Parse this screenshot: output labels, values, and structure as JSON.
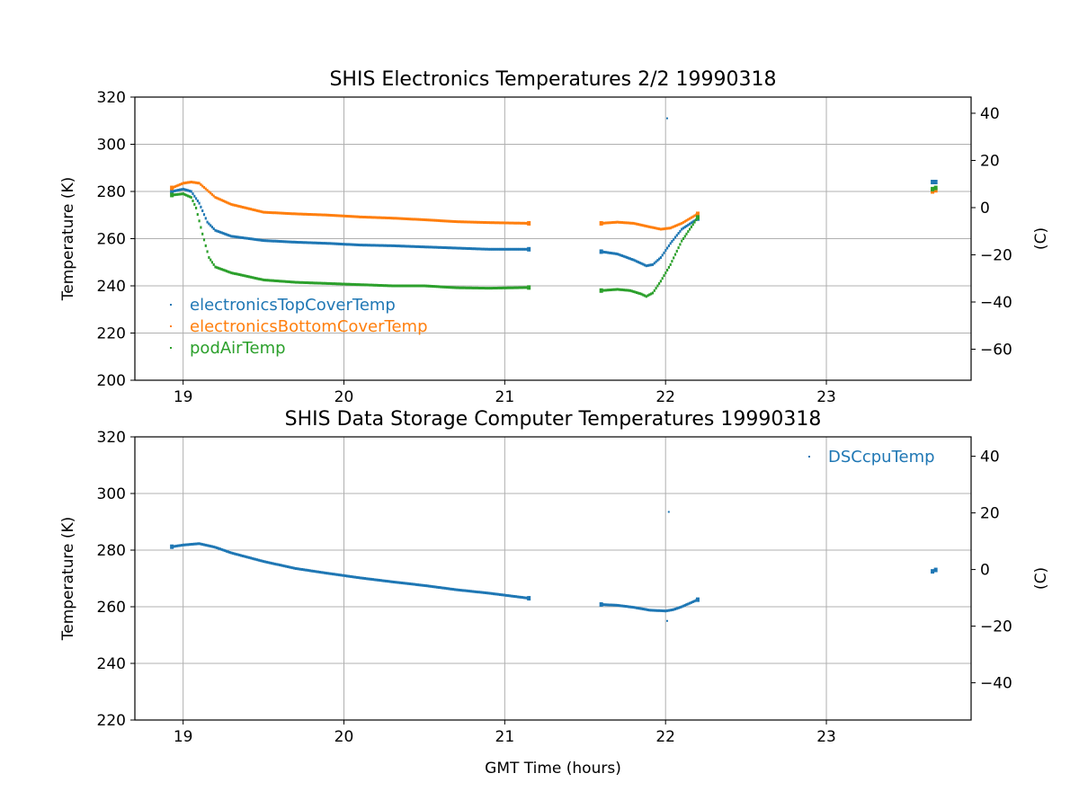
{
  "chart_data": [
    {
      "type": "scatter",
      "title": "SHIS Electronics Temperatures 2/2 19990318",
      "xlabel": "",
      "ylabel": "Temperature (K)",
      "ylabel_right": "(C)",
      "xlim": [
        18.7,
        23.9
      ],
      "ylim": [
        200,
        320
      ],
      "ylim_right": [
        -73.15,
        46.85
      ],
      "x_ticks": [
        "19",
        "20",
        "21",
        "22",
        "23"
      ],
      "y_ticks": [
        "200",
        "220",
        "240",
        "260",
        "280",
        "300",
        "320"
      ],
      "y_ticks_right": [
        "−60",
        "−40",
        "−20",
        "0",
        "20",
        "40"
      ],
      "grid": true,
      "legend_position": "lower-left",
      "series": [
        {
          "name": "electronicsTopCoverTemp",
          "color": "#1f77b4",
          "points": [
            [
              18.93,
              280
            ],
            [
              19.0,
              281
            ],
            [
              19.05,
              280
            ],
            [
              19.1,
              275
            ],
            [
              19.15,
              267
            ],
            [
              19.2,
              263.5
            ],
            [
              19.3,
              261
            ],
            [
              19.5,
              259.2
            ],
            [
              19.7,
              258.5
            ],
            [
              19.9,
              258
            ],
            [
              20.1,
              257.3
            ],
            [
              20.3,
              257
            ],
            [
              20.5,
              256.5
            ],
            [
              20.7,
              256
            ],
            [
              20.9,
              255.5
            ],
            [
              21.15,
              255.5
            ],
            [
              21.6,
              254.5
            ],
            [
              21.7,
              253.5
            ],
            [
              21.8,
              251
            ],
            [
              21.88,
              248.5
            ],
            [
              21.92,
              249
            ],
            [
              21.97,
              252
            ],
            [
              22.03,
              258
            ],
            [
              22.1,
              264
            ],
            [
              22.2,
              268.5
            ],
            [
              23.66,
              284
            ],
            [
              23.68,
              284
            ]
          ],
          "outliers": [
            [
              22.01,
              311
            ]
          ]
        },
        {
          "name": "electronicsBottomCoverTemp",
          "color": "#ff7f0e",
          "points": [
            [
              18.93,
              281.5
            ],
            [
              19.0,
              283.5
            ],
            [
              19.05,
              284
            ],
            [
              19.1,
              283.5
            ],
            [
              19.15,
              280.5
            ],
            [
              19.2,
              277.5
            ],
            [
              19.3,
              274.5
            ],
            [
              19.5,
              271.2
            ],
            [
              19.7,
              270.5
            ],
            [
              19.9,
              270
            ],
            [
              20.1,
              269.2
            ],
            [
              20.3,
              268.7
            ],
            [
              20.5,
              268
            ],
            [
              20.7,
              267.2
            ],
            [
              20.9,
              266.8
            ],
            [
              21.15,
              266.5
            ],
            [
              21.6,
              266.5
            ],
            [
              21.7,
              267
            ],
            [
              21.8,
              266.5
            ],
            [
              21.9,
              265
            ],
            [
              21.97,
              264
            ],
            [
              22.03,
              264.5
            ],
            [
              22.1,
              266.5
            ],
            [
              22.2,
              270.5
            ],
            [
              23.66,
              280
            ],
            [
              23.68,
              280.5
            ]
          ],
          "outliers": []
        },
        {
          "name": "podAirTemp",
          "color": "#2ca02c",
          "points": [
            [
              18.93,
              278.5
            ],
            [
              19.0,
              279
            ],
            [
              19.05,
              277.5
            ],
            [
              19.08,
              273
            ],
            [
              19.12,
              262
            ],
            [
              19.16,
              252
            ],
            [
              19.2,
              248
            ],
            [
              19.3,
              245.5
            ],
            [
              19.5,
              242.5
            ],
            [
              19.7,
              241.5
            ],
            [
              19.9,
              241
            ],
            [
              20.1,
              240.5
            ],
            [
              20.3,
              240
            ],
            [
              20.5,
              240
            ],
            [
              20.7,
              239.2
            ],
            [
              20.9,
              239
            ],
            [
              21.15,
              239.3
            ],
            [
              21.6,
              238
            ],
            [
              21.7,
              238.5
            ],
            [
              21.78,
              238
            ],
            [
              21.85,
              236.5
            ],
            [
              21.88,
              235.5
            ],
            [
              21.92,
              237
            ],
            [
              21.97,
              242
            ],
            [
              22.03,
              249
            ],
            [
              22.1,
              259
            ],
            [
              22.2,
              269
            ],
            [
              23.66,
              281
            ],
            [
              23.68,
              281.5
            ]
          ],
          "outliers": []
        }
      ]
    },
    {
      "type": "scatter",
      "title": "SHIS Data Storage Computer Temperatures 19990318",
      "xlabel": "GMT Time (hours)",
      "ylabel": "Temperature (K)",
      "ylabel_right": "(C)",
      "xlim": [
        18.7,
        23.9
      ],
      "ylim": [
        220,
        320
      ],
      "ylim_right": [
        -53.15,
        46.85
      ],
      "x_ticks": [
        "19",
        "20",
        "21",
        "22",
        "23"
      ],
      "y_ticks": [
        "220",
        "240",
        "260",
        "280",
        "300",
        "320"
      ],
      "y_ticks_right": [
        "−40",
        "−20",
        "0",
        "20",
        "40"
      ],
      "grid": true,
      "legend_position": "upper-right",
      "series": [
        {
          "name": "DSCcpuTemp",
          "color": "#1f77b4",
          "points": [
            [
              18.93,
              281.2
            ],
            [
              19.0,
              281.8
            ],
            [
              19.1,
              282.3
            ],
            [
              19.2,
              281
            ],
            [
              19.3,
              279
            ],
            [
              19.5,
              276
            ],
            [
              19.7,
              273.5
            ],
            [
              19.9,
              271.8
            ],
            [
              20.1,
              270.2
            ],
            [
              20.3,
              268.8
            ],
            [
              20.5,
              267.5
            ],
            [
              20.7,
              266
            ],
            [
              20.9,
              264.8
            ],
            [
              21.15,
              263
            ],
            [
              21.6,
              260.8
            ],
            [
              21.7,
              260.5
            ],
            [
              21.8,
              259.8
            ],
            [
              21.9,
              258.8
            ],
            [
              22.0,
              258.5
            ],
            [
              22.05,
              259
            ],
            [
              22.1,
              260
            ],
            [
              22.2,
              262.5
            ],
            [
              23.66,
              272.5
            ],
            [
              23.68,
              273
            ]
          ],
          "outliers": [
            [
              22.02,
              293.5
            ],
            [
              22.01,
              255
            ]
          ]
        }
      ]
    }
  ]
}
